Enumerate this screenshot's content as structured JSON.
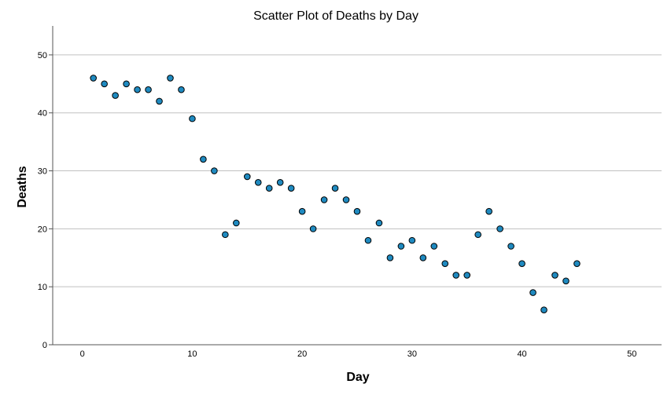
{
  "chart_data": {
    "type": "scatter",
    "title": "Scatter Plot of Deaths by Day",
    "xlabel": "Day",
    "ylabel": "Deaths",
    "xlim": [
      -2.7,
      52.7
    ],
    "ylim": [
      0,
      55
    ],
    "xticks": [
      0,
      10,
      20,
      30,
      40,
      50
    ],
    "yticks": [
      0,
      10,
      20,
      30,
      40,
      50
    ],
    "grid": "horizontal",
    "marker_color": "#1f8ac0",
    "marker_edge_color": "#000000",
    "gridline_color": "#c0c0c0",
    "points": [
      {
        "x": 1,
        "y": 46
      },
      {
        "x": 2,
        "y": 45
      },
      {
        "x": 3,
        "y": 43
      },
      {
        "x": 4,
        "y": 45
      },
      {
        "x": 5,
        "y": 44
      },
      {
        "x": 6,
        "y": 44
      },
      {
        "x": 7,
        "y": 42
      },
      {
        "x": 8,
        "y": 46
      },
      {
        "x": 9,
        "y": 44
      },
      {
        "x": 10,
        "y": 39
      },
      {
        "x": 11,
        "y": 32
      },
      {
        "x": 12,
        "y": 30
      },
      {
        "x": 13,
        "y": 19
      },
      {
        "x": 14,
        "y": 21
      },
      {
        "x": 15,
        "y": 29
      },
      {
        "x": 16,
        "y": 28
      },
      {
        "x": 17,
        "y": 27
      },
      {
        "x": 18,
        "y": 28
      },
      {
        "x": 19,
        "y": 27
      },
      {
        "x": 20,
        "y": 23
      },
      {
        "x": 21,
        "y": 20
      },
      {
        "x": 22,
        "y": 25
      },
      {
        "x": 23,
        "y": 27
      },
      {
        "x": 24,
        "y": 25
      },
      {
        "x": 25,
        "y": 23
      },
      {
        "x": 26,
        "y": 18
      },
      {
        "x": 27,
        "y": 21
      },
      {
        "x": 28,
        "y": 15
      },
      {
        "x": 29,
        "y": 17
      },
      {
        "x": 30,
        "y": 18
      },
      {
        "x": 31,
        "y": 15
      },
      {
        "x": 32,
        "y": 17
      },
      {
        "x": 33,
        "y": 14
      },
      {
        "x": 34,
        "y": 12
      },
      {
        "x": 35,
        "y": 12
      },
      {
        "x": 36,
        "y": 19
      },
      {
        "x": 37,
        "y": 23
      },
      {
        "x": 38,
        "y": 20
      },
      {
        "x": 39,
        "y": 17
      },
      {
        "x": 40,
        "y": 14
      },
      {
        "x": 41,
        "y": 9
      },
      {
        "x": 42,
        "y": 6
      },
      {
        "x": 43,
        "y": 12
      },
      {
        "x": 44,
        "y": 11
      },
      {
        "x": 45,
        "y": 14
      }
    ]
  }
}
